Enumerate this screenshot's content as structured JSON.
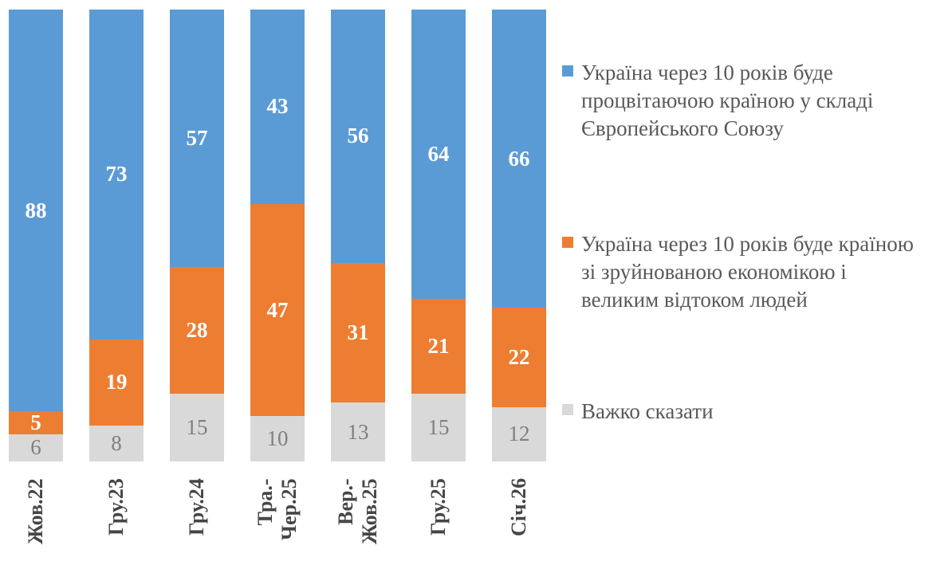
{
  "chart_data": {
    "type": "bar",
    "subtype": "stacked-column-100",
    "title": "",
    "xlabel": "",
    "ylabel": "",
    "ylim": [
      0,
      100
    ],
    "grid": false,
    "axes_visible": false,
    "legend_position": "right",
    "data_labels": true,
    "categories": [
      "Жов.22",
      "Гру.23",
      "Гру.24",
      "Тра.-\nЧер.25",
      "Вер.-\nЖов.25",
      "Гру.25",
      "Січ.26"
    ],
    "series": [
      {
        "name": "Україна через 10 років буде\nпроцвітаючою країною у складі\nЄвропейського Союзу",
        "color": "#5B9BD5",
        "label_color": "#FFFFFF",
        "values": [
          88,
          73,
          57,
          43,
          56,
          64,
          66
        ]
      },
      {
        "name": "Україна через 10 років буде країною\nзі зруйнованою економікою і\nвеликим відтоком людей",
        "color": "#ED7D31",
        "label_color": "#FFFFFF",
        "values": [
          5,
          19,
          28,
          47,
          31,
          21,
          22
        ]
      },
      {
        "name": "Важко сказати",
        "color": "#D9D9D9",
        "label_color": "#7F7F7F",
        "values": [
          6,
          8,
          15,
          10,
          13,
          15,
          12
        ]
      }
    ]
  },
  "colors": {
    "background": "#FFFFFF",
    "category_label": "#464646",
    "legend_text": "#595959"
  }
}
